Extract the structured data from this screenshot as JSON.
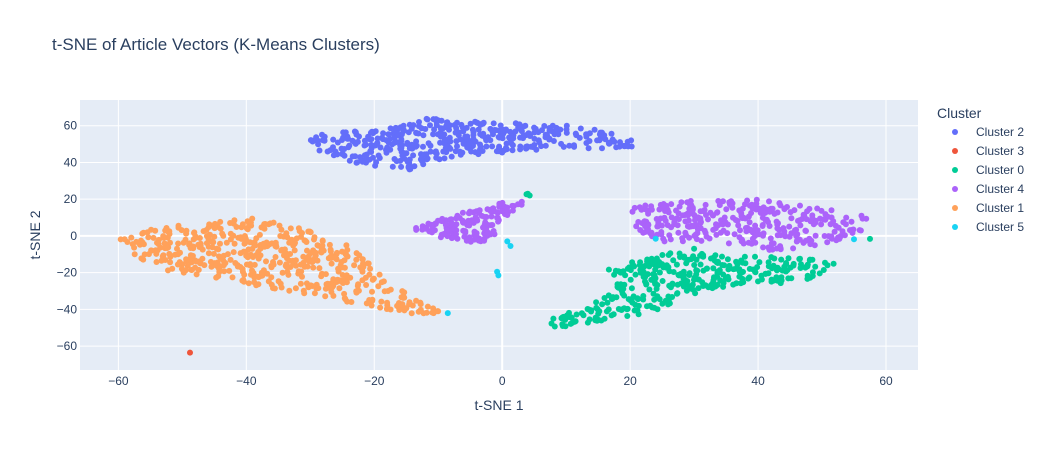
{
  "chart_data": {
    "type": "scatter",
    "title": "t-SNE of Article Vectors (K-Means Clusters)",
    "xlabel": "t-SNE 1",
    "ylabel": "t-SNE 2",
    "xlim": [
      -66,
      65
    ],
    "ylim": [
      -73,
      74
    ],
    "xticks": [
      -60,
      -40,
      -20,
      0,
      20,
      40,
      60
    ],
    "yticks": [
      -60,
      -40,
      -20,
      0,
      20,
      40,
      60
    ],
    "xtick_labels": [
      "−60",
      "−40",
      "−20",
      "0",
      "20",
      "40",
      "60"
    ],
    "ytick_labels": [
      "−60",
      "−40",
      "−20",
      "0",
      "20",
      "40",
      "60"
    ],
    "grid": true,
    "legend_title": "Cluster",
    "legend_position": "right",
    "series": [
      {
        "name": "Cluster 2",
        "color": "#636efa",
        "regions": [
          {
            "poly": [
              [
                -31,
                54
              ],
              [
                -18,
                59
              ],
              [
                -12,
                64
              ],
              [
                0,
                62
              ],
              [
                10,
                60
              ],
              [
                16,
                57
              ],
              [
                22,
                51
              ],
              [
                20,
                47
              ],
              [
                10,
                48
              ],
              [
                0,
                45
              ],
              [
                -8,
                42
              ],
              [
                -14,
                36
              ],
              [
                -22,
                38
              ],
              [
                -30,
                47
              ]
            ],
            "count": 420
          }
        ],
        "points": []
      },
      {
        "name": "Cluster 3",
        "color": "#ef553b",
        "regions": [],
        "points": [
          [
            -48.8,
            -63.5
          ]
        ]
      },
      {
        "name": "Cluster 0",
        "color": "#00cc96",
        "regions": [
          {
            "poly": [
              [
                6,
                -47
              ],
              [
                13,
                -39
              ],
              [
                18,
                -30
              ],
              [
                16,
                -17
              ],
              [
                26,
                -9
              ],
              [
                48,
                -12
              ],
              [
                52,
                -15
              ],
              [
                50,
                -20
              ],
              [
                47,
                -26
              ],
              [
                37,
                -26
              ],
              [
                28,
                -34
              ],
              [
                23,
                -42
              ],
              [
                15,
                -47
              ],
              [
                8,
                -50
              ]
            ],
            "count": 360
          }
        ],
        "points": [
          [
            4,
            23
          ],
          [
            4.3,
            22
          ],
          [
            3.8,
            22.7
          ],
          [
            57.5,
            -1.6
          ],
          [
            30,
            -7
          ],
          [
            9.5,
            -44.5
          ]
        ]
      },
      {
        "name": "Cluster 4",
        "color": "#ab63fa",
        "regions": [
          {
            "poly": [
              [
                -14,
                6
              ],
              [
                -8,
                11
              ],
              [
                0,
                18
              ],
              [
                5,
                20
              ],
              [
                4,
                17
              ],
              [
                0,
                10
              ],
              [
                0,
                0
              ],
              [
                -4,
                -4
              ],
              [
                -10,
                -1
              ],
              [
                -15,
                5
              ]
            ],
            "count": 140
          },
          {
            "poly": [
              [
                20,
                16
              ],
              [
                25,
                19
              ],
              [
                33,
                20
              ],
              [
                40,
                20
              ],
              [
                46,
                17
              ],
              [
                50,
                15
              ],
              [
                55,
                13
              ],
              [
                57,
                10
              ],
              [
                56,
                0
              ],
              [
                52,
                -3
              ],
              [
                47,
                -7
              ],
              [
                40,
                -8
              ],
              [
                34,
                -3
              ],
              [
                25,
                -3
              ],
              [
                22,
                0
              ],
              [
                20,
                8
              ]
            ],
            "count": 330
          }
        ],
        "points": []
      },
      {
        "name": "Cluster 1",
        "color": "#ffa15a",
        "regions": [
          {
            "poly": [
              [
                -60,
                -1
              ],
              [
                -52,
                6
              ],
              [
                -44,
                8
              ],
              [
                -38,
                10
              ],
              [
                -32,
                5
              ],
              [
                -24,
                -5
              ],
              [
                -19,
                -20
              ],
              [
                -18,
                -25
              ],
              [
                -12,
                -37
              ],
              [
                -8,
                -42
              ],
              [
                -12,
                -44
              ],
              [
                -18,
                -40
              ],
              [
                -24,
                -36
              ],
              [
                -30,
                -32
              ],
              [
                -38,
                -28
              ],
              [
                -46,
                -22
              ],
              [
                -54,
                -18
              ],
              [
                -58,
                -10
              ]
            ],
            "count": 520
          }
        ],
        "points": []
      },
      {
        "name": "Cluster 5",
        "color": "#19d3f3",
        "regions": [],
        "points": [
          [
            -0.8,
            -19.5
          ],
          [
            -0.6,
            -21.5
          ],
          [
            1.3,
            -5.5
          ],
          [
            0.8,
            -3
          ],
          [
            -8.5,
            -42
          ],
          [
            55,
            -1.8
          ],
          [
            24,
            -1.5
          ]
        ]
      }
    ]
  }
}
